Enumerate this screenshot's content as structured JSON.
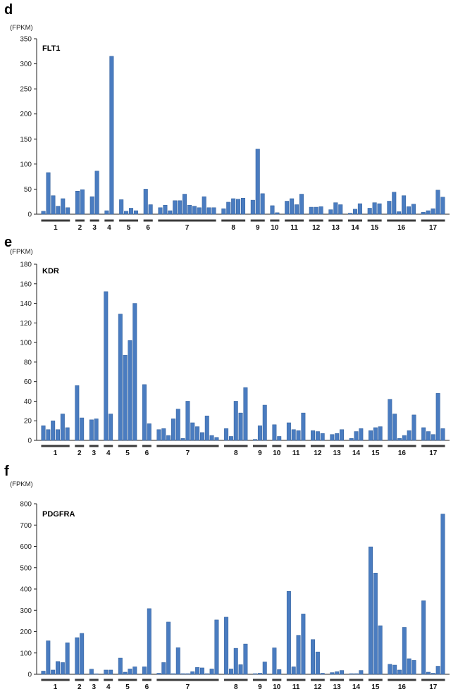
{
  "colors": {
    "bar": "#4a7cc0",
    "bar_stroke": "#2f5d9a",
    "axis": "#222222",
    "group_line": "#3b3b3b"
  },
  "chart_data": [
    {
      "panel": "d",
      "type": "bar",
      "title": "FLT1",
      "ylabel": "(FPKM)",
      "ylim": [
        0,
        350
      ],
      "yticks": [
        "0",
        "50",
        "100",
        "150",
        "200",
        "250",
        "300",
        "350"
      ],
      "groups": [
        {
          "label": "1",
          "values": [
            6,
            83,
            37,
            16,
            31,
            13
          ]
        },
        {
          "label": "2",
          "values": [
            46,
            49
          ]
        },
        {
          "label": "3",
          "values": [
            35,
            86
          ]
        },
        {
          "label": "4",
          "values": [
            7,
            315
          ]
        },
        {
          "label": "5",
          "values": [
            29,
            6,
            12,
            7
          ]
        },
        {
          "label": "6",
          "values": [
            50,
            19
          ]
        },
        {
          "label": "7",
          "values": [
            13,
            18,
            7,
            27,
            27,
            40,
            18,
            16,
            13,
            35,
            13,
            13
          ]
        },
        {
          "label": "8",
          "values": [
            11,
            24,
            31,
            30,
            32
          ]
        },
        {
          "label": "9",
          "values": [
            28,
            130,
            41
          ]
        },
        {
          "label": "10",
          "values": [
            17,
            3
          ]
        },
        {
          "label": "11",
          "values": [
            26,
            31,
            19,
            40
          ]
        },
        {
          "label": "12",
          "values": [
            14,
            14,
            15
          ]
        },
        {
          "label": "13",
          "values": [
            9,
            23,
            19
          ]
        },
        {
          "label": "14",
          "values": [
            2,
            10,
            21
          ]
        },
        {
          "label": "15",
          "values": [
            12,
            23,
            21
          ]
        },
        {
          "label": "16",
          "values": [
            26,
            44,
            5,
            37,
            15,
            20
          ]
        },
        {
          "label": "17",
          "values": [
            4,
            7,
            11,
            48,
            34
          ]
        }
      ]
    },
    {
      "panel": "e",
      "type": "bar",
      "title": "KDR",
      "ylabel": "(FPKM)",
      "ylim": [
        0,
        180
      ],
      "yticks": [
        "0",
        "20",
        "40",
        "60",
        "80",
        "100",
        "120",
        "140",
        "160",
        "180"
      ],
      "groups": [
        {
          "label": "1",
          "values": [
            15,
            11,
            20,
            11,
            27,
            13
          ]
        },
        {
          "label": "2",
          "values": [
            56,
            23
          ]
        },
        {
          "label": "3",
          "values": [
            21,
            22
          ]
        },
        {
          "label": "4",
          "values": [
            152,
            27
          ]
        },
        {
          "label": "5",
          "values": [
            129,
            87,
            102,
            140
          ]
        },
        {
          "label": "6",
          "values": [
            57,
            17
          ]
        },
        {
          "label": "7",
          "values": [
            11,
            12,
            5,
            22,
            32,
            2,
            40,
            18,
            14,
            8,
            25,
            5,
            3
          ]
        },
        {
          "label": "8",
          "values": [
            12,
            4,
            40,
            28,
            54
          ]
        },
        {
          "label": "9",
          "values": [
            1,
            15,
            36
          ]
        },
        {
          "label": "10",
          "values": [
            16,
            4
          ]
        },
        {
          "label": "11",
          "values": [
            18,
            11,
            10,
            28
          ]
        },
        {
          "label": "12",
          "values": [
            10,
            9,
            7
          ]
        },
        {
          "label": "13",
          "values": [
            6,
            7,
            11
          ]
        },
        {
          "label": "14",
          "values": [
            2,
            9,
            12
          ]
        },
        {
          "label": "15",
          "values": [
            10,
            13,
            14
          ]
        },
        {
          "label": "16",
          "values": [
            42,
            27,
            2,
            5,
            10,
            26
          ]
        },
        {
          "label": "17",
          "values": [
            13,
            9,
            6,
            48,
            12
          ]
        }
      ]
    },
    {
      "panel": "f",
      "type": "bar",
      "title": "PDGFRA",
      "ylabel": "(FPKM)",
      "ylim": [
        0,
        800
      ],
      "yticks": [
        "0",
        "100",
        "200",
        "300",
        "400",
        "500",
        "600",
        "700",
        "800"
      ],
      "groups": [
        {
          "label": "1",
          "values": [
            15,
            157,
            20,
            60,
            55,
            148
          ]
        },
        {
          "label": "2",
          "values": [
            172,
            192
          ]
        },
        {
          "label": "3",
          "values": [
            24,
            2
          ]
        },
        {
          "label": "4",
          "values": [
            20,
            20
          ]
        },
        {
          "label": "5",
          "values": [
            76,
            10,
            25,
            35
          ]
        },
        {
          "label": "6",
          "values": [
            35,
            308
          ]
        },
        {
          "label": "7",
          "values": [
            5,
            55,
            245,
            3,
            125,
            3,
            3,
            12,
            32,
            30,
            3,
            25,
            255
          ]
        },
        {
          "label": "8",
          "values": [
            268,
            25,
            122,
            45,
            142
          ]
        },
        {
          "label": "9",
          "values": [
            3,
            5,
            58
          ]
        },
        {
          "label": "10",
          "values": [
            124,
            22
          ]
        },
        {
          "label": "11",
          "values": [
            389,
            35,
            183,
            283
          ]
        },
        {
          "label": "12",
          "values": [
            163,
            105,
            5
          ]
        },
        {
          "label": "13",
          "values": [
            8,
            12,
            18
          ]
        },
        {
          "label": "14",
          "values": [
            3,
            3,
            18
          ]
        },
        {
          "label": "15",
          "values": [
            598,
            475,
            228
          ]
        },
        {
          "label": "16",
          "values": [
            47,
            43,
            20,
            220,
            73,
            65
          ]
        },
        {
          "label": "17",
          "values": [
            345,
            10,
            5,
            38,
            752
          ]
        }
      ]
    }
  ]
}
